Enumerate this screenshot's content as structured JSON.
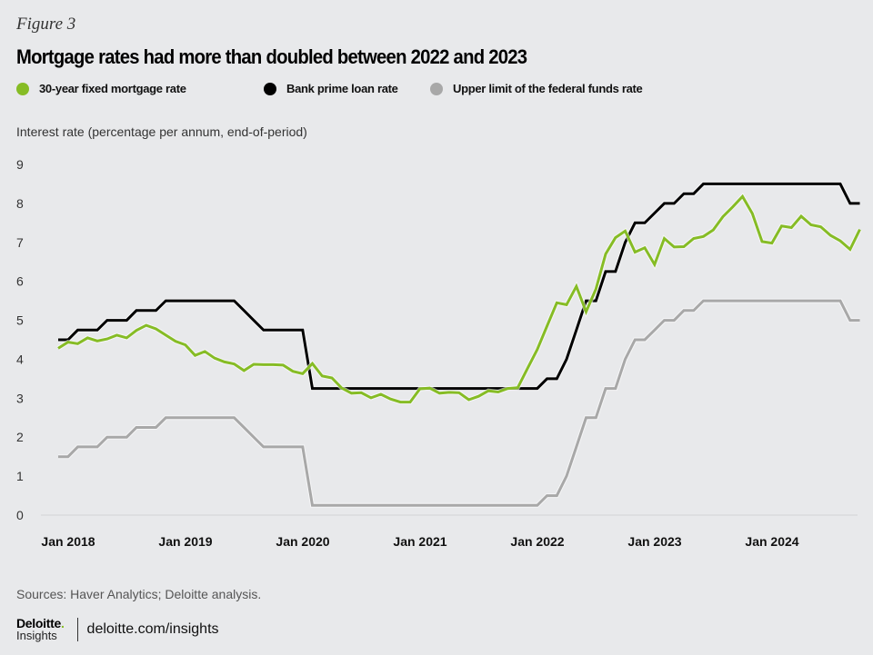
{
  "header": {
    "eyebrow": "Figure 3",
    "title": "Mortgage rates had more than doubled between 2022 and 2023"
  },
  "footer": {
    "sources": "Sources: Haver Analytics; Deloitte analysis.",
    "logo_main": "Deloitte",
    "logo_dot": ".",
    "logo_sub": "Insights",
    "url": "deloitte.com/insights"
  },
  "chart_data": {
    "type": "line",
    "title": "Mortgage rates had more than doubled between 2022 and 2023",
    "xlabel": "",
    "ylabel": "Interest rate (percentage per annum, end-of-period)",
    "ylim": [
      0,
      9
    ],
    "yticks": [
      0,
      1,
      2,
      3,
      4,
      5,
      6,
      7,
      8,
      9
    ],
    "x_start": "Jan 2018",
    "x_end": "Oct 2024",
    "x_frequency": "monthly",
    "xtick_labels": [
      "Jan 2018",
      "Jan 2019",
      "Jan 2020",
      "Jan 2021",
      "Jan 2022",
      "Jan 2023",
      "Jan 2024"
    ],
    "grid": false,
    "legend_position": "top",
    "series": [
      {
        "name": "30-year fixed mortgage rate",
        "color": "#86bc25",
        "values": [
          4.28,
          4.44,
          4.4,
          4.55,
          4.47,
          4.52,
          4.62,
          4.55,
          4.74,
          4.87,
          4.78,
          4.62,
          4.46,
          4.37,
          4.1,
          4.2,
          4.03,
          3.93,
          3.88,
          3.71,
          3.87,
          3.86,
          3.86,
          3.85,
          3.69,
          3.63,
          3.89,
          3.57,
          3.52,
          3.26,
          3.13,
          3.14,
          3.01,
          3.1,
          2.98,
          2.9,
          2.9,
          3.24,
          3.26,
          3.13,
          3.15,
          3.14,
          2.96,
          3.05,
          3.19,
          3.16,
          3.25,
          3.27,
          3.76,
          4.25,
          4.85,
          5.45,
          5.4,
          5.87,
          5.22,
          5.8,
          6.7,
          7.12,
          7.29,
          6.75,
          6.86,
          6.43,
          7.1,
          6.88,
          6.89,
          7.1,
          7.15,
          7.32,
          7.66,
          7.91,
          8.18,
          7.74,
          7.02,
          6.98,
          7.42,
          7.38,
          7.67,
          7.45,
          7.4,
          7.18,
          7.04,
          6.82,
          7.33
        ]
      },
      {
        "name": "Bank prime loan rate",
        "color": "#000000",
        "values": [
          4.5,
          4.5,
          4.75,
          4.75,
          4.75,
          5.0,
          5.0,
          5.0,
          5.25,
          5.25,
          5.25,
          5.5,
          5.5,
          5.5,
          5.5,
          5.5,
          5.5,
          5.5,
          5.5,
          5.25,
          5.0,
          4.75,
          4.75,
          4.75,
          4.75,
          4.75,
          3.25,
          3.25,
          3.25,
          3.25,
          3.25,
          3.25,
          3.25,
          3.25,
          3.25,
          3.25,
          3.25,
          3.25,
          3.25,
          3.25,
          3.25,
          3.25,
          3.25,
          3.25,
          3.25,
          3.25,
          3.25,
          3.25,
          3.25,
          3.25,
          3.5,
          3.5,
          4.0,
          4.75,
          5.5,
          5.5,
          6.25,
          6.25,
          7.0,
          7.5,
          7.5,
          7.75,
          8.0,
          8.0,
          8.25,
          8.25,
          8.5,
          8.5,
          8.5,
          8.5,
          8.5,
          8.5,
          8.5,
          8.5,
          8.5,
          8.5,
          8.5,
          8.5,
          8.5,
          8.5,
          8.5,
          8.0,
          8.0
        ]
      },
      {
        "name": "Upper limit of the federal funds rate",
        "color": "#a8a8a8",
        "values": [
          1.5,
          1.5,
          1.75,
          1.75,
          1.75,
          2.0,
          2.0,
          2.0,
          2.25,
          2.25,
          2.25,
          2.5,
          2.5,
          2.5,
          2.5,
          2.5,
          2.5,
          2.5,
          2.5,
          2.25,
          2.0,
          1.75,
          1.75,
          1.75,
          1.75,
          1.75,
          0.25,
          0.25,
          0.25,
          0.25,
          0.25,
          0.25,
          0.25,
          0.25,
          0.25,
          0.25,
          0.25,
          0.25,
          0.25,
          0.25,
          0.25,
          0.25,
          0.25,
          0.25,
          0.25,
          0.25,
          0.25,
          0.25,
          0.25,
          0.25,
          0.5,
          0.5,
          1.0,
          1.75,
          2.5,
          2.5,
          3.25,
          3.25,
          4.0,
          4.5,
          4.5,
          4.75,
          5.0,
          5.0,
          5.25,
          5.25,
          5.5,
          5.5,
          5.5,
          5.5,
          5.5,
          5.5,
          5.5,
          5.5,
          5.5,
          5.5,
          5.5,
          5.5,
          5.5,
          5.5,
          5.5,
          5.0,
          5.0
        ]
      }
    ]
  }
}
